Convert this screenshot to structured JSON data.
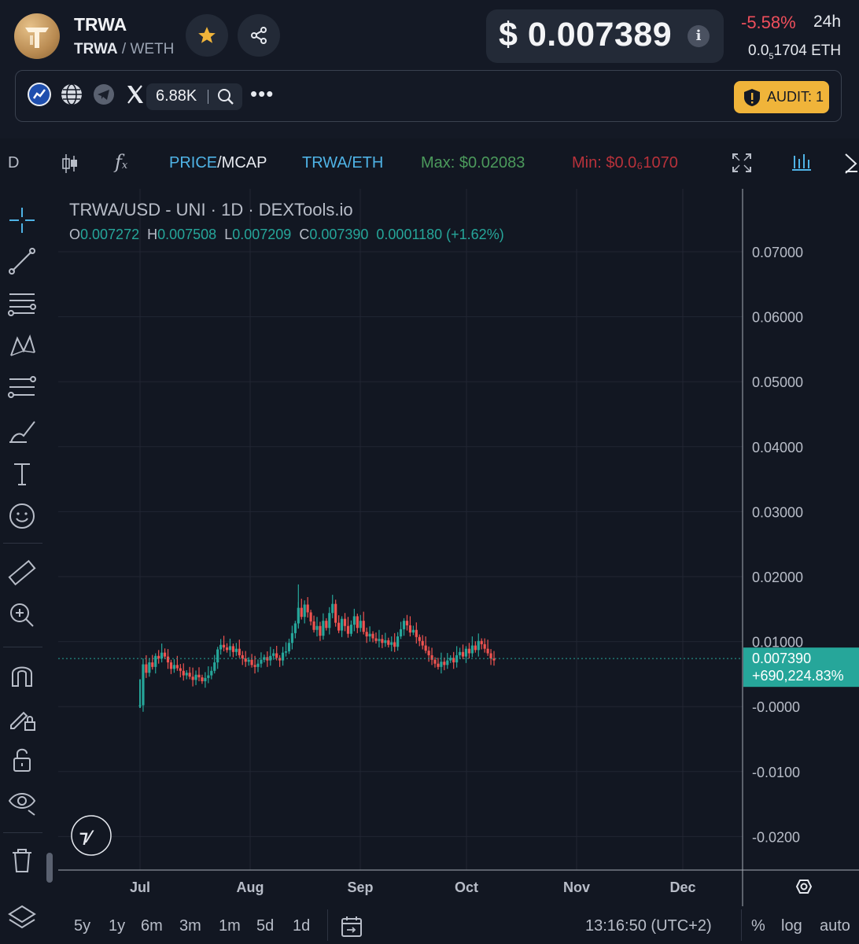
{
  "header": {
    "token_name": "TRWA",
    "pair_base": "TRWA",
    "pair_sep": "/",
    "pair_quote": "WETH",
    "price": "$ 0.007389",
    "change": "-5.58%",
    "period": "24h",
    "eth_price_prefix": "0.0",
    "eth_price_sub": "5",
    "eth_price_rest": "1704",
    "eth_unit": "ETH"
  },
  "social": {
    "twitter_count": "6.88K",
    "audit_label": "AUDIT: 1"
  },
  "toolbar": {
    "interval": "D",
    "price_label": "PRICE",
    "mcap_label": "/MCAP",
    "pair_label": "TRWA/ETH",
    "max_label": "Max: $0.02083",
    "min_label": "Min: $0.0₆1070"
  },
  "chart_data": {
    "type": "candlestick",
    "title": "TRWA/USD - UNI · 1D · DEXTools.io",
    "ohlc": {
      "o": "0.007272",
      "h": "0.007508",
      "l": "0.007209",
      "c": "0.007390",
      "change": "0.0001180 (+1.62%)"
    },
    "y_ticks": [
      "0.07000",
      "0.06000",
      "0.05000",
      "0.04000",
      "0.03000",
      "0.02000",
      "0.01000",
      "-0.0000",
      "-0.0100",
      "-0.0200"
    ],
    "x_ticks": [
      "Jul",
      "Aug",
      "Sep",
      "Oct",
      "Nov",
      "Dec"
    ],
    "last_price_label": "0.007390",
    "last_change_label": "+690,224.83%",
    "last_price": 0.00739,
    "ylim": [
      -0.0245,
      0.0765
    ],
    "close_series": [
      0.0002,
      0.0065,
      0.0052,
      0.0068,
      0.0061,
      0.0078,
      0.0074,
      0.0083,
      0.0077,
      0.0068,
      0.0058,
      0.0064,
      0.0059,
      0.0055,
      0.0048,
      0.0052,
      0.0046,
      0.0041,
      0.0049,
      0.0045,
      0.0039,
      0.0044,
      0.0048,
      0.0055,
      0.0068,
      0.0088,
      0.0095,
      0.0091,
      0.0087,
      0.0093,
      0.0084,
      0.0089,
      0.0079,
      0.0074,
      0.0069,
      0.0072,
      0.0064,
      0.0061,
      0.0066,
      0.0072,
      0.0076,
      0.0071,
      0.0078,
      0.0082,
      0.0075,
      0.0071,
      0.0083,
      0.0085,
      0.0098,
      0.0113,
      0.0128,
      0.0152,
      0.0138,
      0.0157,
      0.0145,
      0.0131,
      0.0118,
      0.0124,
      0.0109,
      0.0132,
      0.0121,
      0.0144,
      0.0158,
      0.0129,
      0.0117,
      0.0135,
      0.0124,
      0.0112,
      0.0126,
      0.0139,
      0.0121,
      0.0132,
      0.0115,
      0.0108,
      0.0112,
      0.0105,
      0.0101,
      0.0104,
      0.0098,
      0.0102,
      0.0095,
      0.0099,
      0.0092,
      0.0108,
      0.0119,
      0.0132,
      0.0125,
      0.0114,
      0.0118,
      0.0107,
      0.0101,
      0.0094,
      0.0086,
      0.0079,
      0.0072,
      0.0066,
      0.0061,
      0.0069,
      0.0064,
      0.0071,
      0.0075,
      0.0068,
      0.0079,
      0.0084,
      0.0077,
      0.0089,
      0.0082,
      0.0094,
      0.0087,
      0.0101,
      0.0096,
      0.0089,
      0.0082,
      0.0074,
      0.0071
    ]
  },
  "bottom": {
    "timeframes": [
      "5y",
      "1y",
      "6m",
      "3m",
      "1m",
      "5d",
      "1d"
    ],
    "time": "13:16:50 (UTC+2)",
    "percent": "%",
    "log": "log",
    "auto": "auto"
  }
}
